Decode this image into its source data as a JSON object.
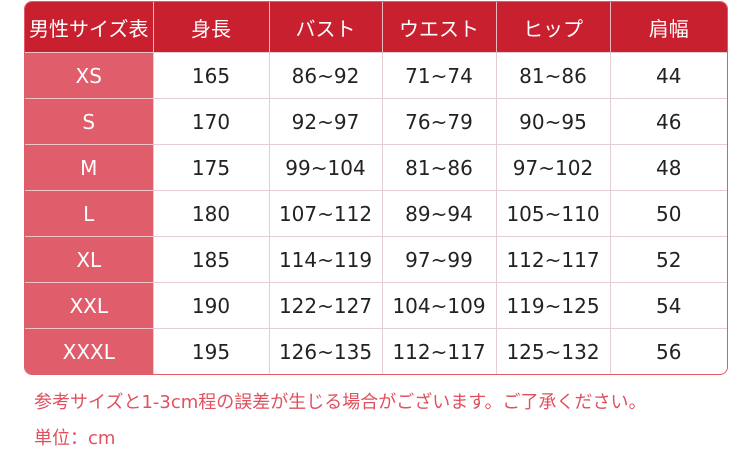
{
  "table": {
    "headers": [
      "男性サイズ表",
      "身長",
      "バスト",
      "ウエスト",
      "ヒップ",
      "肩幅"
    ],
    "rows": [
      [
        "XS",
        "165",
        "86~92",
        "71~74",
        "81~86",
        "44"
      ],
      [
        "S",
        "170",
        "92~97",
        "76~79",
        "90~95",
        "46"
      ],
      [
        "M",
        "175",
        "99~104",
        "81~86",
        "97~102",
        "48"
      ],
      [
        "L",
        "180",
        "107~112",
        "89~94",
        "105~110",
        "50"
      ],
      [
        "XL",
        "185",
        "114~119",
        "97~99",
        "112~117",
        "52"
      ],
      [
        "XXL",
        "190",
        "122~127",
        "104~109",
        "119~125",
        "54"
      ],
      [
        "XXXL",
        "195",
        "126~135",
        "112~117",
        "125~132",
        "56"
      ]
    ]
  },
  "notes": {
    "tolerance": "参考サイズと1-3cm程の誤差が生じる場合がございます。ご了承ください。",
    "unit": "単位：cm"
  },
  "colors": {
    "header": "#c8202f",
    "size_column": "#e05d6b",
    "note_text": "#e0505f"
  }
}
